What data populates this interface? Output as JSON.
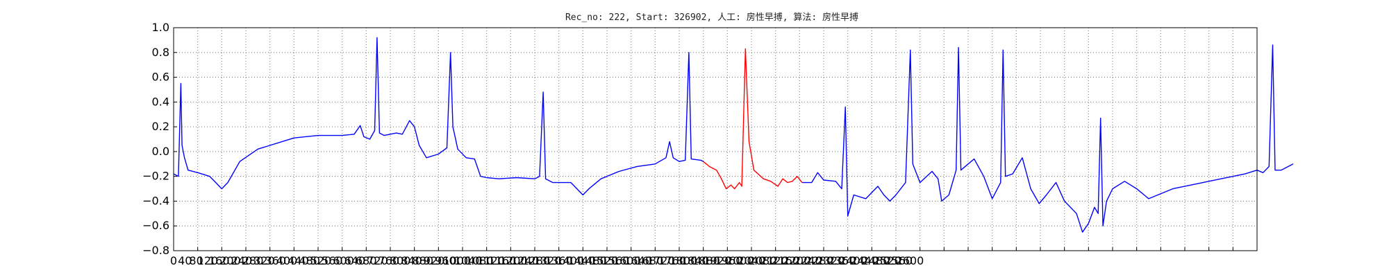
{
  "chart_data": {
    "type": "line",
    "title": "Rec_no: 222, Start: 326902, 人工: 房性早搏, 算法: 房性早搏",
    "xlabel": "",
    "ylabel": "",
    "xlim": [
      0,
      1800
    ],
    "ylim": [
      -0.8,
      1.0
    ],
    "grid": true,
    "yticks": [
      "1.0",
      "0.8",
      "0.6",
      "0.4",
      "0.2",
      "0.0",
      "−0.2",
      "−0.4",
      "−0.6",
      "−0.8"
    ],
    "yticks_values": [
      1.0,
      0.8,
      0.6,
      0.4,
      0.2,
      0.0,
      -0.2,
      -0.4,
      -0.6,
      -0.8
    ],
    "xticks": [
      "0",
      "40",
      "80",
      "120",
      "160",
      "200",
      "240",
      "280",
      "320",
      "360",
      "400",
      "440",
      "480",
      "520",
      "560",
      "600",
      "640",
      "680",
      "720",
      "760",
      "800",
      "840",
      "880",
      "920",
      "960",
      "1000",
      "1040",
      "1080",
      "1120",
      "1160",
      "1200",
      "1240",
      "1280",
      "1320",
      "1360",
      "1400",
      "1440",
      "1480",
      "1520",
      "1560",
      "1600",
      "1640",
      "1680",
      "1720",
      "1760",
      "1800",
      "1840",
      "1880",
      "1920",
      "1960",
      "2000",
      "2040",
      "2080",
      "2120",
      "2160",
      "2200",
      "2240",
      "2280",
      "2320",
      "2360",
      "2400",
      "2440",
      "2480",
      "2520",
      "2560",
      "2600"
    ],
    "series": [
      {
        "color": "#0000ff",
        "points": [
          [
            0,
            -0.18
          ],
          [
            8,
            -0.2
          ],
          [
            12,
            0.55
          ],
          [
            14,
            0.05
          ],
          [
            18,
            -0.05
          ],
          [
            24,
            -0.15
          ],
          [
            40,
            -0.17
          ],
          [
            60,
            -0.2
          ],
          [
            70,
            -0.25
          ],
          [
            80,
            -0.3
          ],
          [
            90,
            -0.25
          ],
          [
            110,
            -0.08
          ],
          [
            140,
            0.02
          ],
          [
            180,
            0.08
          ],
          [
            200,
            0.11
          ],
          [
            240,
            0.13
          ],
          [
            280,
            0.13
          ],
          [
            300,
            0.14
          ],
          [
            310,
            0.21
          ],
          [
            316,
            0.12
          ],
          [
            326,
            0.1
          ],
          [
            334,
            0.17
          ],
          [
            338,
            0.92
          ],
          [
            342,
            0.15
          ],
          [
            350,
            0.13
          ],
          [
            370,
            0.15
          ],
          [
            380,
            0.14
          ],
          [
            392,
            0.25
          ],
          [
            400,
            0.2
          ],
          [
            408,
            0.05
          ],
          [
            420,
            -0.05
          ],
          [
            440,
            -0.02
          ],
          [
            454,
            0.03
          ],
          [
            460,
            0.8
          ],
          [
            464,
            0.2
          ],
          [
            472,
            0.02
          ],
          [
            486,
            -0.05
          ],
          [
            500,
            -0.06
          ],
          [
            510,
            -0.2
          ],
          [
            520,
            -0.21
          ],
          [
            540,
            -0.22
          ],
          [
            570,
            -0.21
          ],
          [
            600,
            -0.22
          ],
          [
            608,
            -0.2
          ],
          [
            614,
            0.48
          ],
          [
            618,
            -0.22
          ],
          [
            630,
            -0.25
          ],
          [
            660,
            -0.25
          ],
          [
            670,
            -0.3
          ],
          [
            680,
            -0.35
          ],
          [
            690,
            -0.3
          ],
          [
            710,
            -0.22
          ],
          [
            740,
            -0.16
          ],
          [
            770,
            -0.12
          ],
          [
            800,
            -0.1
          ],
          [
            818,
            -0.05
          ],
          [
            824,
            0.08
          ],
          [
            830,
            -0.05
          ],
          [
            840,
            -0.08
          ],
          [
            850,
            -0.07
          ],
          [
            856,
            0.8
          ],
          [
            860,
            -0.06
          ],
          [
            876,
            -0.07
          ],
          [
            880,
            -0.08
          ]
        ]
      },
      {
        "color": "#ff0000",
        "points": [
          [
            880,
            -0.08
          ],
          [
            890,
            -0.12
          ],
          [
            902,
            -0.15
          ],
          [
            910,
            -0.22
          ],
          [
            918,
            -0.3
          ],
          [
            926,
            -0.27
          ],
          [
            932,
            -0.3
          ],
          [
            940,
            -0.25
          ],
          [
            944,
            -0.28
          ],
          [
            950,
            0.83
          ],
          [
            956,
            0.08
          ],
          [
            964,
            -0.15
          ],
          [
            980,
            -0.22
          ],
          [
            992,
            -0.24
          ],
          [
            1004,
            -0.28
          ],
          [
            1012,
            -0.22
          ],
          [
            1020,
            -0.25
          ],
          [
            1028,
            -0.24
          ],
          [
            1036,
            -0.2
          ],
          [
            1044,
            -0.25
          ]
        ]
      },
      {
        "color": "#0000ff",
        "points": [
          [
            1044,
            -0.25
          ],
          [
            1060,
            -0.25
          ],
          [
            1070,
            -0.17
          ],
          [
            1080,
            -0.23
          ],
          [
            1100,
            -0.24
          ],
          [
            1110,
            -0.3
          ],
          [
            1116,
            0.36
          ],
          [
            1120,
            -0.52
          ],
          [
            1130,
            -0.35
          ],
          [
            1150,
            -0.38
          ],
          [
            1170,
            -0.28
          ],
          [
            1180,
            -0.35
          ],
          [
            1190,
            -0.4
          ],
          [
            1200,
            -0.35
          ],
          [
            1216,
            -0.25
          ],
          [
            1224,
            0.82
          ],
          [
            1228,
            -0.1
          ],
          [
            1240,
            -0.25
          ],
          [
            1260,
            -0.16
          ],
          [
            1270,
            -0.22
          ],
          [
            1276,
            -0.4
          ],
          [
            1288,
            -0.35
          ],
          [
            1300,
            -0.15
          ],
          [
            1304,
            0.84
          ],
          [
            1308,
            -0.15
          ],
          [
            1320,
            -0.1
          ],
          [
            1330,
            -0.06
          ],
          [
            1346,
            -0.2
          ],
          [
            1360,
            -0.38
          ],
          [
            1374,
            -0.25
          ],
          [
            1378,
            0.82
          ],
          [
            1382,
            -0.2
          ],
          [
            1394,
            -0.18
          ],
          [
            1410,
            -0.05
          ],
          [
            1424,
            -0.3
          ],
          [
            1438,
            -0.42
          ],
          [
            1450,
            -0.35
          ],
          [
            1466,
            -0.25
          ],
          [
            1480,
            -0.4
          ],
          [
            1500,
            -0.5
          ],
          [
            1510,
            -0.65
          ],
          [
            1520,
            -0.58
          ],
          [
            1530,
            -0.45
          ],
          [
            1536,
            -0.5
          ],
          [
            1540,
            0.27
          ],
          [
            1544,
            -0.6
          ],
          [
            1550,
            -0.4
          ],
          [
            1560,
            -0.3
          ],
          [
            1580,
            -0.24
          ],
          [
            1600,
            -0.3
          ],
          [
            1620,
            -0.38
          ],
          [
            1660,
            -0.3
          ],
          [
            1700,
            -0.26
          ],
          [
            1740,
            -0.22
          ],
          [
            1780,
            -0.18
          ],
          [
            1800,
            -0.15
          ],
          [
            1810,
            -0.17
          ],
          [
            1820,
            -0.12
          ],
          [
            1826,
            0.86
          ],
          [
            1830,
            -0.15
          ],
          [
            1840,
            -0.15
          ],
          [
            1860,
            -0.1
          ]
        ]
      }
    ]
  }
}
